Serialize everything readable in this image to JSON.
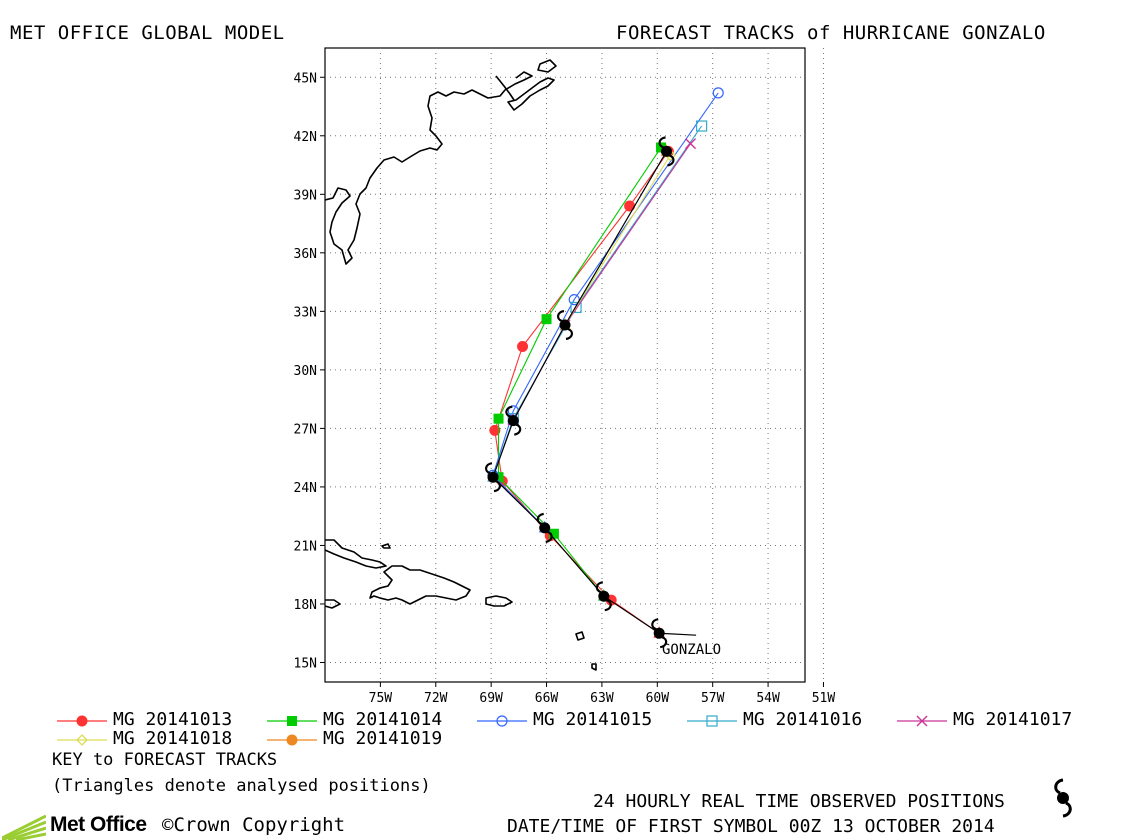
{
  "header": {
    "left_title": "MET OFFICE GLOBAL MODEL",
    "right_title": "FORECAST TRACKS of HURRICANE GONZALO"
  },
  "map": {
    "lon_range": [
      -78,
      -52
    ],
    "lat_range": [
      14,
      46.5
    ],
    "lon_ticks": [
      -75,
      -72,
      -69,
      -66,
      -63,
      -60,
      -57,
      -54,
      -51
    ],
    "lon_tick_labels": [
      "75W",
      "72W",
      "69W",
      "66W",
      "63W",
      "60W",
      "57W",
      "54W",
      "51W"
    ],
    "lat_ticks": [
      15,
      18,
      21,
      24,
      27,
      30,
      33,
      36,
      39,
      42,
      45
    ],
    "lat_tick_labels": [
      "15N",
      "18N",
      "21N",
      "24N",
      "27N",
      "30N",
      "33N",
      "36N",
      "39N",
      "42N",
      "45N"
    ],
    "grid": "dotted",
    "storm_label": "GONZALO",
    "colors": {
      "coast": "#000000",
      "observed": "#000000",
      "mg20141013": "#ff3333",
      "mg20141014": "#00cc00",
      "mg20141015": "#3366ff",
      "mg20141016": "#33aacc",
      "mg20141017": "#cc3399",
      "mg20141018": "#dddd55",
      "mg20141019": "#ee8822"
    }
  },
  "chart_data": {
    "type": "line",
    "observed_track": [
      [
        -59.9,
        16.5
      ],
      [
        -62.9,
        18.4
      ],
      [
        -66.1,
        21.9
      ],
      [
        -68.9,
        24.5
      ],
      [
        -67.8,
        27.4
      ],
      [
        -65.0,
        32.3
      ],
      [
        -59.5,
        41.2
      ]
    ],
    "observed_current": [
      [
        -57.9,
        16.4
      ],
      [
        -59.9,
        16.5
      ]
    ],
    "series": [
      {
        "name": "MG 20141013",
        "color": "#ff3333",
        "marker": "circle-filled",
        "points": [
          [
            -59.9,
            16.5
          ],
          [
            -62.5,
            18.2
          ],
          [
            -65.8,
            21.5
          ],
          [
            -68.4,
            24.3
          ],
          [
            -68.8,
            26.9
          ],
          [
            -67.3,
            31.2
          ],
          [
            -61.5,
            38.4
          ],
          [
            -59.4,
            41.2
          ]
        ]
      },
      {
        "name": "MG 20141014",
        "color": "#00cc00",
        "marker": "square-filled",
        "points": [
          [
            -62.9,
            18.4
          ],
          [
            -65.6,
            21.6
          ],
          [
            -68.6,
            24.5
          ],
          [
            -68.6,
            27.5
          ],
          [
            -66.0,
            32.6
          ],
          [
            -59.8,
            41.4
          ]
        ]
      },
      {
        "name": "MG 20141015",
        "color": "#3366ff",
        "marker": "circle-open",
        "points": [
          [
            -66.1,
            21.9
          ],
          [
            -68.9,
            24.6
          ],
          [
            -67.8,
            27.9
          ],
          [
            -64.5,
            33.6
          ],
          [
            -56.7,
            44.2
          ]
        ]
      },
      {
        "name": "MG 20141016",
        "color": "#33aacc",
        "marker": "square-open",
        "points": [
          [
            -68.9,
            24.5
          ],
          [
            -67.8,
            27.5
          ],
          [
            -64.4,
            33.2
          ],
          [
            -57.6,
            42.5
          ]
        ]
      },
      {
        "name": "MG 20141017",
        "color": "#cc3399",
        "marker": "x",
        "points": [
          [
            -67.8,
            27.4
          ],
          [
            -65.0,
            32.3
          ],
          [
            -58.2,
            41.6
          ]
        ]
      },
      {
        "name": "MG 20141018",
        "color": "#dddd55",
        "marker": "diamond-open",
        "points": [
          [
            -65.0,
            32.3
          ],
          [
            -59.3,
            41.0
          ]
        ]
      },
      {
        "name": "MG 20141019",
        "color": "#ee8822",
        "marker": "circle-filled",
        "points": [
          [
            -59.5,
            41.2
          ]
        ]
      }
    ]
  },
  "legend": [
    {
      "label": "MG 20141013",
      "color": "#ff3333",
      "marker": "circle-filled"
    },
    {
      "label": "MG 20141014",
      "color": "#00cc00",
      "marker": "square-filled"
    },
    {
      "label": "MG 20141015",
      "color": "#3366ff",
      "marker": "circle-open"
    },
    {
      "label": "MG 20141016",
      "color": "#33aacc",
      "marker": "square-open"
    },
    {
      "label": "MG 20141017",
      "color": "#cc3399",
      "marker": "x"
    },
    {
      "label": "MG 20141018",
      "color": "#dddd55",
      "marker": "diamond-open"
    },
    {
      "label": "MG 20141019",
      "color": "#ee8822",
      "marker": "circle-filled"
    }
  ],
  "notes": {
    "key": "KEY to FORECAST TRACKS",
    "triangles": "(Triangles denote analysed positions)"
  },
  "footer": {
    "observed": "24 HOURLY REAL TIME OBSERVED POSITIONS",
    "datetime": "DATE/TIME OF FIRST SYMBOL 00Z 13 OCTOBER 2014",
    "brand": "Met Office",
    "copyright": "©Crown Copyright"
  }
}
